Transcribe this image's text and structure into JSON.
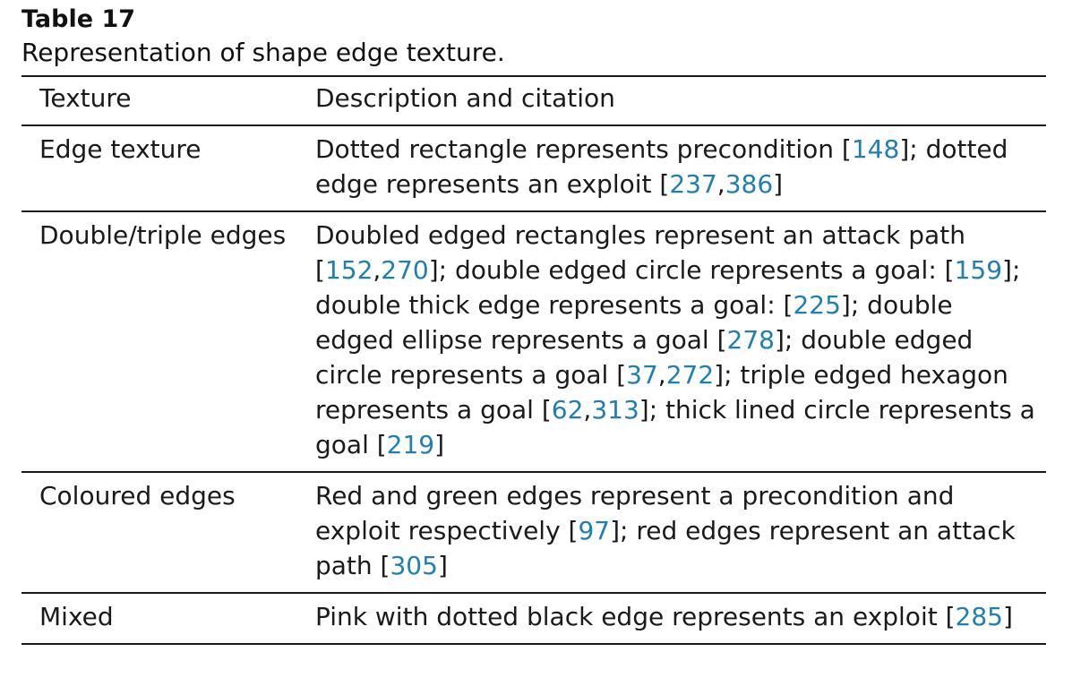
{
  "table": {
    "label": "Table 17",
    "caption": "Representation of shape edge texture.",
    "headers": {
      "texture": "Texture",
      "description": "Description and citation"
    },
    "link_color": "#1f7fb0",
    "rows": [
      {
        "texture": "Edge texture",
        "description": [
          {
            "t": "Dotted rectangle represents precondition ["
          },
          {
            "t": "148",
            "cite": true
          },
          {
            "t": "]; dotted edge represents an exploit ["
          },
          {
            "t": "237",
            "cite": true
          },
          {
            "t": ","
          },
          {
            "t": "386",
            "cite": true
          },
          {
            "t": "]"
          }
        ]
      },
      {
        "texture": "Double/triple edges",
        "description": [
          {
            "t": "Doubled edged rectangles represent an attack path ["
          },
          {
            "t": "152",
            "cite": true
          },
          {
            "t": ","
          },
          {
            "t": "270",
            "cite": true
          },
          {
            "t": "]; double edged circle represents a goal: ["
          },
          {
            "t": "159",
            "cite": true
          },
          {
            "t": "]; double thick edge represents a goal: ["
          },
          {
            "t": "225",
            "cite": true
          },
          {
            "t": "]; double edged ellipse represents a goal ["
          },
          {
            "t": "278",
            "cite": true
          },
          {
            "t": "]; double edged circle represents a goal ["
          },
          {
            "t": "37",
            "cite": true
          },
          {
            "t": ","
          },
          {
            "t": "272",
            "cite": true
          },
          {
            "t": "]; triple edged hexagon represents a goal ["
          },
          {
            "t": "62",
            "cite": true
          },
          {
            "t": ","
          },
          {
            "t": "313",
            "cite": true
          },
          {
            "t": "]; thick lined circle represents a goal ["
          },
          {
            "t": "219",
            "cite": true
          },
          {
            "t": "]"
          }
        ]
      },
      {
        "texture": "Coloured edges",
        "description": [
          {
            "t": "Red and green edges represent a precondition and exploit respectively ["
          },
          {
            "t": "97",
            "cite": true
          },
          {
            "t": "]; red edges represent an attack path ["
          },
          {
            "t": "305",
            "cite": true
          },
          {
            "t": "]"
          }
        ]
      },
      {
        "texture": "Mixed",
        "description": [
          {
            "t": "Pink with dotted black edge represents an exploit ["
          },
          {
            "t": "285",
            "cite": true
          },
          {
            "t": "]"
          }
        ]
      }
    ]
  }
}
